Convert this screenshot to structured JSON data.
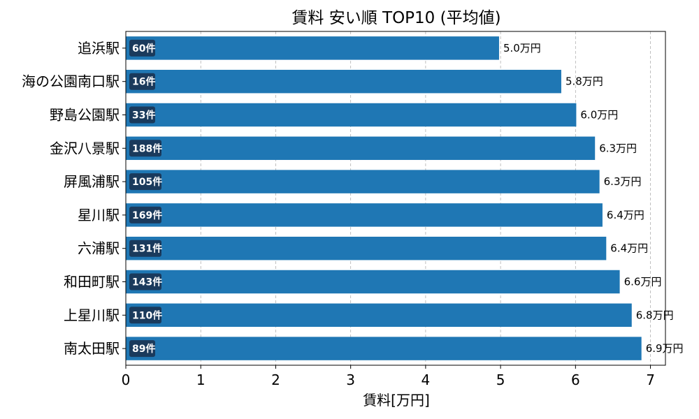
{
  "chart_data": {
    "type": "bar",
    "orientation": "horizontal",
    "title": "賃料 安い順 TOP10 (平均値)",
    "xlabel": "賃料[万円]",
    "ylabel": "",
    "xlim": [
      0,
      7.2
    ],
    "xticks": [
      0,
      1,
      2,
      3,
      4,
      5,
      6,
      7
    ],
    "grid": "x dashed",
    "bar_color": "#1f77b4",
    "badge_color": "#1a3a5c",
    "categories": [
      "追浜駅",
      "海の公園南口駅",
      "野島公園駅",
      "金沢八景駅",
      "屏風浦駅",
      "星川駅",
      "六浦駅",
      "和田町駅",
      "上星川駅",
      "南太田駅"
    ],
    "values": [
      4.98,
      5.81,
      6.01,
      6.26,
      6.32,
      6.36,
      6.41,
      6.59,
      6.75,
      6.88
    ],
    "value_labels": [
      "5.0万円",
      "5.8万円",
      "6.0万円",
      "6.3万円",
      "6.3万円",
      "6.4万円",
      "6.4万円",
      "6.6万円",
      "6.8万円",
      "6.9万円"
    ],
    "counts": [
      "60件",
      "16件",
      "33件",
      "188件",
      "105件",
      "169件",
      "131件",
      "143件",
      "110件",
      "89件"
    ]
  }
}
